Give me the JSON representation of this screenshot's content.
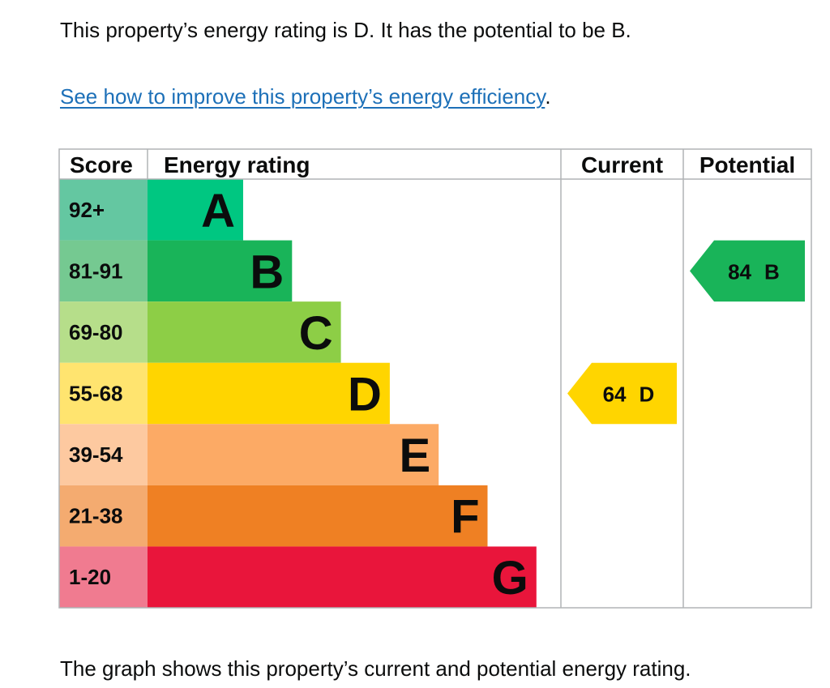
{
  "intro_text": "This property’s energy rating is D. It has the potential to be B.",
  "improve_link_text": "See how to improve this property’s energy efficiency",
  "improve_suffix": ".",
  "caption_text": "The graph shows this property’s current and potential energy rating.",
  "chart_data": {
    "type": "bar",
    "headers": {
      "score": "Score",
      "rating": "Energy rating",
      "current": "Current",
      "potential": "Potential"
    },
    "bands": [
      {
        "letter": "A",
        "range": "92+",
        "color": "#00c781",
        "score_color": "#64c7a1"
      },
      {
        "letter": "B",
        "range": "81-91",
        "color": "#19b459",
        "score_color": "#75c991"
      },
      {
        "letter": "C",
        "range": "69-80",
        "color": "#8dce46",
        "score_color": "#b6de8a"
      },
      {
        "letter": "D",
        "range": "55-68",
        "color": "#ffd500",
        "score_color": "#ffe46f"
      },
      {
        "letter": "E",
        "range": "39-54",
        "color": "#fcaa65",
        "score_color": "#fdc9a0"
      },
      {
        "letter": "F",
        "range": "21-38",
        "color": "#ef8023",
        "score_color": "#f4ab70"
      },
      {
        "letter": "G",
        "range": "1-20",
        "color": "#e9153b",
        "score_color": "#f07b90"
      }
    ],
    "current": {
      "score": "64",
      "letter": "D",
      "color": "#ffd500"
    },
    "potential": {
      "score": "84",
      "letter": "B",
      "color": "#19b459"
    }
  }
}
